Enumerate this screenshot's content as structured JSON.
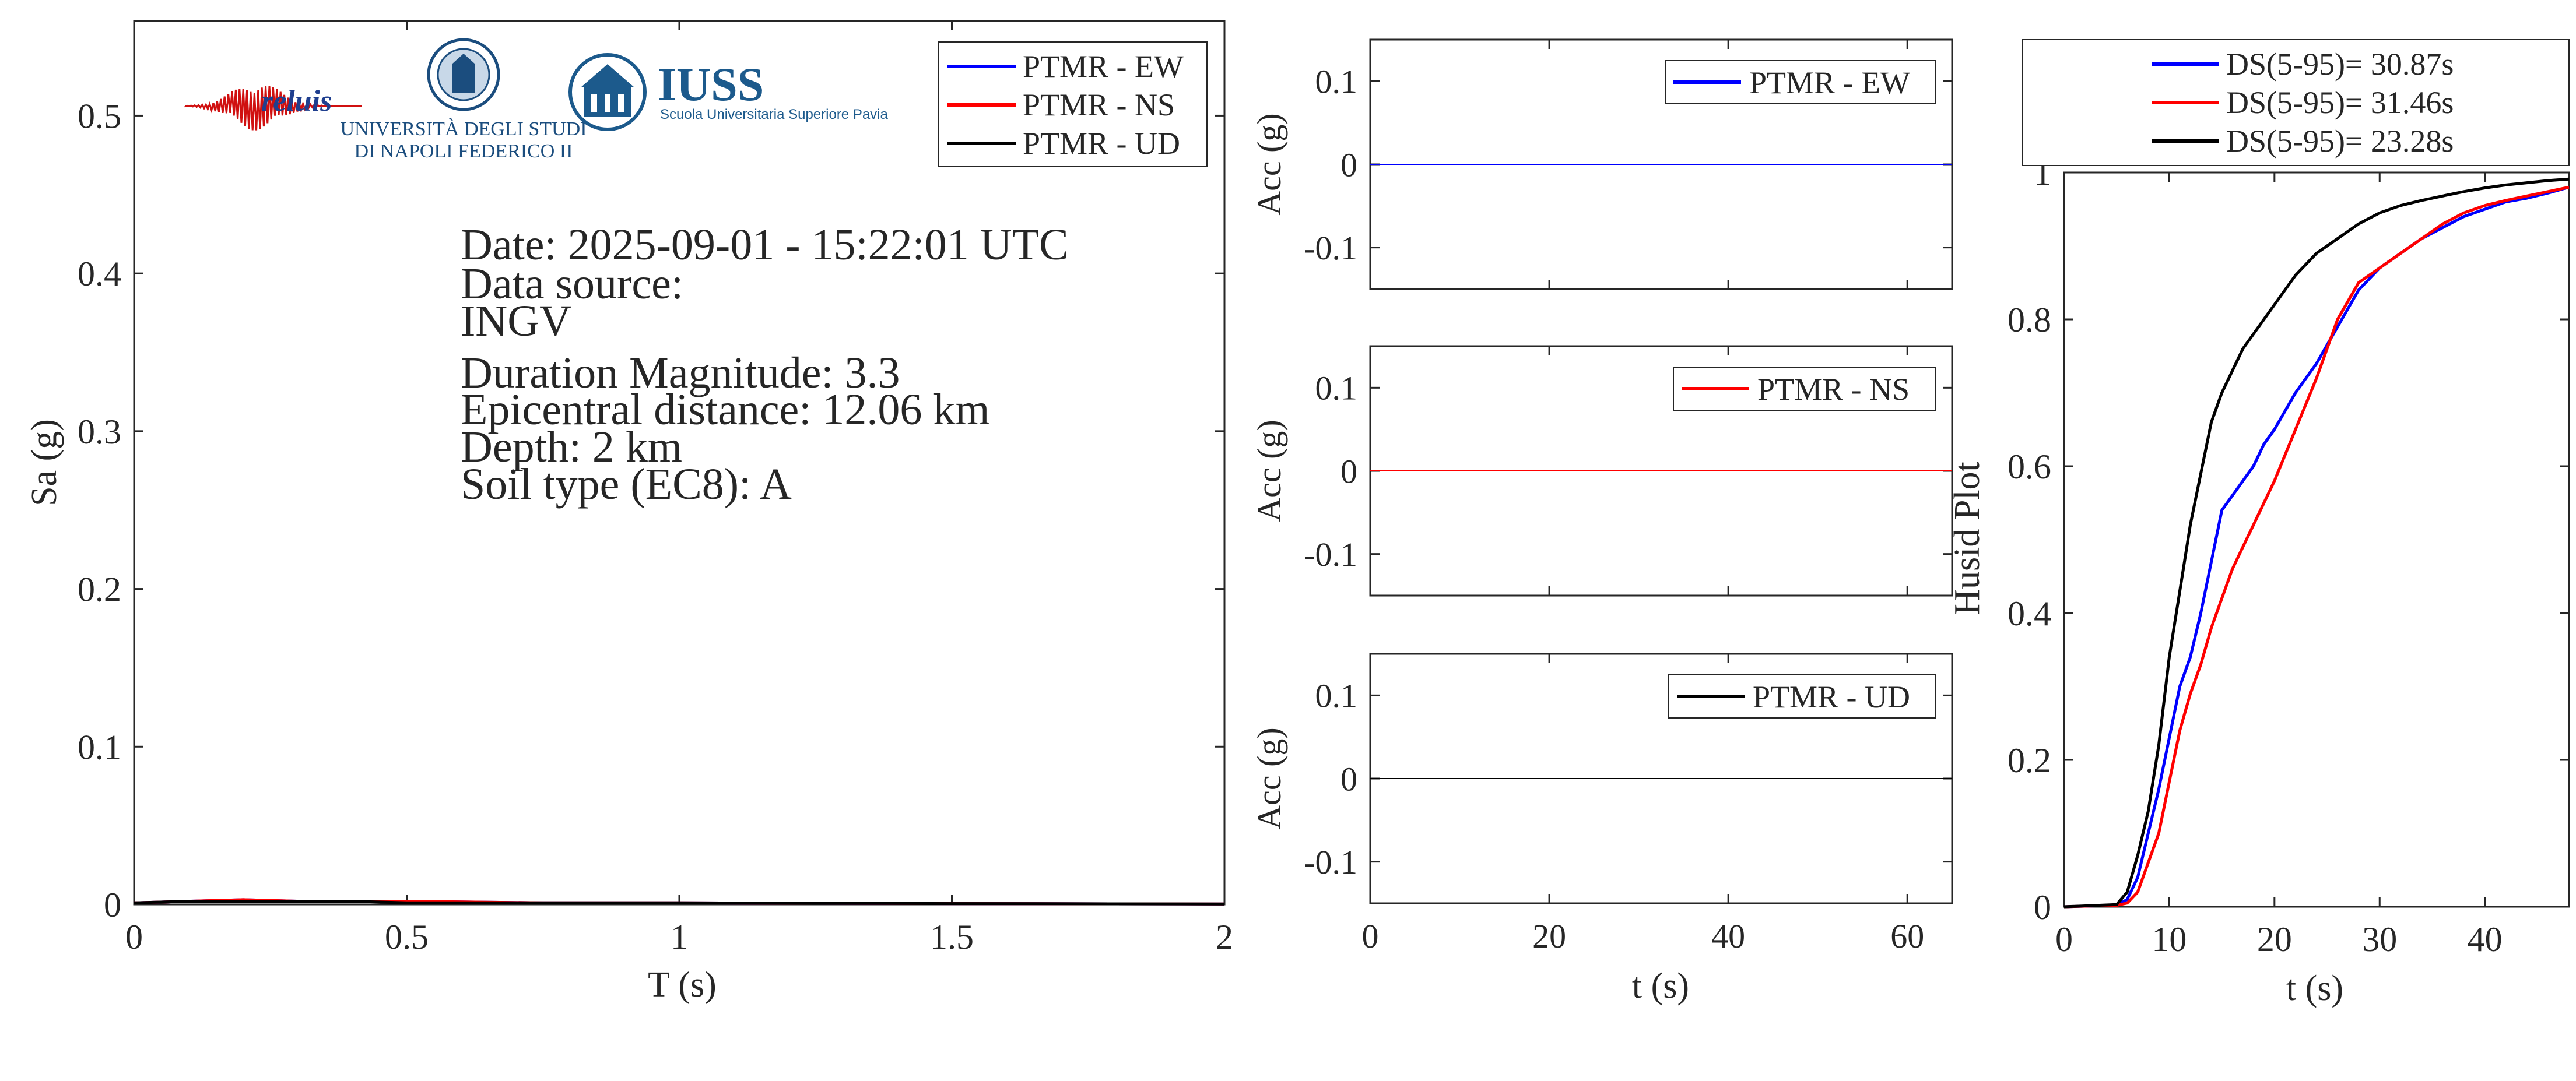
{
  "chart_data": [
    {
      "type": "line",
      "panel": "spectrum",
      "xlabel": "T (s)",
      "ylabel": "Sa (g)",
      "xlim": [
        0,
        2
      ],
      "ylim": [
        0,
        0.56
      ],
      "xticks": [
        0,
        0.5,
        1,
        1.5,
        2
      ],
      "xtick_labels": [
        "0",
        "0.5",
        "1",
        "1.5",
        "2"
      ],
      "yticks": [
        0,
        0.1,
        0.2,
        0.3,
        0.4,
        0.5
      ],
      "ytick_labels": [
        "0",
        "0.1",
        "0.2",
        "0.3",
        "0.4",
        "0.5"
      ],
      "legend_position": "top-right",
      "series": [
        {
          "name": "PTMR - EW",
          "color": "#0000ff",
          "x": [
            0,
            0.1,
            0.2,
            0.3,
            0.4,
            0.5,
            0.75,
            1,
            1.5,
            2
          ],
          "y": [
            0.001,
            0.002,
            0.003,
            0.002,
            0.002,
            0.002,
            0.001,
            0.001,
            0.0005,
            0.0003
          ]
        },
        {
          "name": "PTMR - NS",
          "color": "#ff0000",
          "x": [
            0,
            0.1,
            0.2,
            0.3,
            0.4,
            0.5,
            0.75,
            1,
            1.5,
            2
          ],
          "y": [
            0.001,
            0.002,
            0.003,
            0.002,
            0.002,
            0.002,
            0.001,
            0.001,
            0.0005,
            0.0003
          ]
        },
        {
          "name": "PTMR - UD",
          "color": "#000000",
          "x": [
            0,
            0.1,
            0.2,
            0.3,
            0.4,
            0.5,
            0.75,
            1,
            1.5,
            2
          ],
          "y": [
            0.001,
            0.002,
            0.002,
            0.002,
            0.002,
            0.001,
            0.001,
            0.001,
            0.0005,
            0.0003
          ]
        }
      ],
      "annotations": [
        "Date: 2025-09-01 - 15:22:01 UTC",
        "Data source:",
        "INGV",
        "Duration Magnitude: 3.3",
        "Epicentral distance: 12.06 km",
        "Depth: 2 km",
        "Soil type (EC8): A"
      ],
      "logos": {
        "reluis": "reluis",
        "unina_line1": "UNIVERSITÀ DEGLI STUDI",
        "unina_line2": "DI NAPOLI FEDERICO II",
        "iuss_name": "IUSS",
        "iuss_subtitle": "Scuola Universitaria Superiore Pavia"
      }
    },
    {
      "type": "line",
      "panel": "accel-ew",
      "xlabel": "",
      "ylabel": "Acc (g)",
      "xlim": [
        0,
        65
      ],
      "ylim": [
        -0.15,
        0.15
      ],
      "yticks": [
        0.1,
        0,
        -0.1
      ],
      "ytick_labels": [
        "0.1",
        "0",
        "-0.1"
      ],
      "xticks": [
        0,
        20,
        40,
        60
      ],
      "legend_position": "top-right",
      "series": [
        {
          "name": "PTMR - EW",
          "color": "#0000ff",
          "x": [
            0,
            65
          ],
          "y": [
            0,
            0
          ]
        }
      ]
    },
    {
      "type": "line",
      "panel": "accel-ns",
      "xlabel": "",
      "ylabel": "Acc (g)",
      "xlim": [
        0,
        65
      ],
      "ylim": [
        -0.15,
        0.15
      ],
      "yticks": [
        0.1,
        0,
        -0.1
      ],
      "ytick_labels": [
        "0.1",
        "0",
        "-0.1"
      ],
      "xticks": [
        0,
        20,
        40,
        60
      ],
      "legend_position": "top-right",
      "series": [
        {
          "name": "PTMR - NS",
          "color": "#ff0000",
          "x": [
            0,
            65
          ],
          "y": [
            0,
            0
          ]
        }
      ]
    },
    {
      "type": "line",
      "panel": "accel-ud",
      "xlabel": "t (s)",
      "ylabel": "Acc (g)",
      "xlim": [
        0,
        65
      ],
      "ylim": [
        -0.15,
        0.15
      ],
      "yticks": [
        0.1,
        0,
        -0.1
      ],
      "ytick_labels": [
        "0.1",
        "0",
        "-0.1"
      ],
      "xticks": [
        0,
        20,
        40,
        60
      ],
      "xtick_labels": [
        "0",
        "20",
        "40",
        "60"
      ],
      "legend_position": "top-right",
      "series": [
        {
          "name": "PTMR - UD",
          "color": "#000000",
          "x": [
            0,
            65
          ],
          "y": [
            0,
            0
          ]
        }
      ]
    },
    {
      "type": "line",
      "panel": "husid",
      "xlabel": "t (s)",
      "ylabel": "Husid Plot",
      "xlim": [
        0,
        48
      ],
      "ylim": [
        0,
        1
      ],
      "xticks": [
        0,
        10,
        20,
        30,
        40
      ],
      "xtick_labels": [
        "0",
        "10",
        "20",
        "30",
        "40"
      ],
      "yticks": [
        0,
        0.2,
        0.4,
        0.6,
        0.8,
        1
      ],
      "ytick_labels": [
        "0",
        "0.2",
        "0.4",
        "0.6",
        "0.8",
        "1"
      ],
      "legend_position": "above",
      "series": [
        {
          "name": "DS(5-95)= 30.87s",
          "color": "#0000ff",
          "x": [
            0,
            5,
            6,
            7,
            8,
            9,
            10,
            11,
            12,
            13,
            14,
            15,
            16,
            17,
            18,
            19,
            20,
            22,
            24,
            26,
            28,
            30,
            32,
            34,
            36,
            38,
            40,
            42,
            44,
            46,
            48
          ],
          "y": [
            0,
            0.002,
            0.01,
            0.04,
            0.1,
            0.16,
            0.23,
            0.3,
            0.34,
            0.4,
            0.47,
            0.54,
            0.56,
            0.58,
            0.6,
            0.63,
            0.65,
            0.7,
            0.74,
            0.79,
            0.84,
            0.87,
            0.89,
            0.91,
            0.925,
            0.94,
            0.95,
            0.96,
            0.965,
            0.972,
            0.98
          ]
        },
        {
          "name": "DS(5-95)= 31.46s",
          "color": "#ff0000",
          "x": [
            0,
            5,
            6,
            7,
            8,
            9,
            10,
            11,
            12,
            13,
            14,
            15,
            16,
            17,
            18,
            19,
            20,
            22,
            24,
            26,
            28,
            30,
            32,
            34,
            36,
            38,
            40,
            42,
            44,
            46,
            48
          ],
          "y": [
            0,
            0.002,
            0.005,
            0.02,
            0.06,
            0.1,
            0.17,
            0.24,
            0.29,
            0.33,
            0.38,
            0.42,
            0.46,
            0.49,
            0.52,
            0.55,
            0.58,
            0.65,
            0.72,
            0.8,
            0.85,
            0.87,
            0.89,
            0.91,
            0.93,
            0.945,
            0.955,
            0.962,
            0.968,
            0.974,
            0.98
          ]
        },
        {
          "name": "DS(5-95)= 23.28s",
          "color": "#000000",
          "x": [
            0,
            5,
            6,
            7,
            8,
            9,
            10,
            11,
            12,
            13,
            14,
            15,
            16,
            17,
            18,
            19,
            20,
            22,
            24,
            26,
            28,
            30,
            32,
            34,
            36,
            38,
            40,
            42,
            44,
            46,
            48
          ],
          "y": [
            0,
            0.003,
            0.02,
            0.07,
            0.13,
            0.22,
            0.34,
            0.43,
            0.52,
            0.59,
            0.66,
            0.7,
            0.73,
            0.76,
            0.78,
            0.8,
            0.82,
            0.86,
            0.89,
            0.91,
            0.93,
            0.945,
            0.955,
            0.962,
            0.968,
            0.974,
            0.979,
            0.983,
            0.986,
            0.989,
            0.991
          ]
        }
      ]
    }
  ]
}
